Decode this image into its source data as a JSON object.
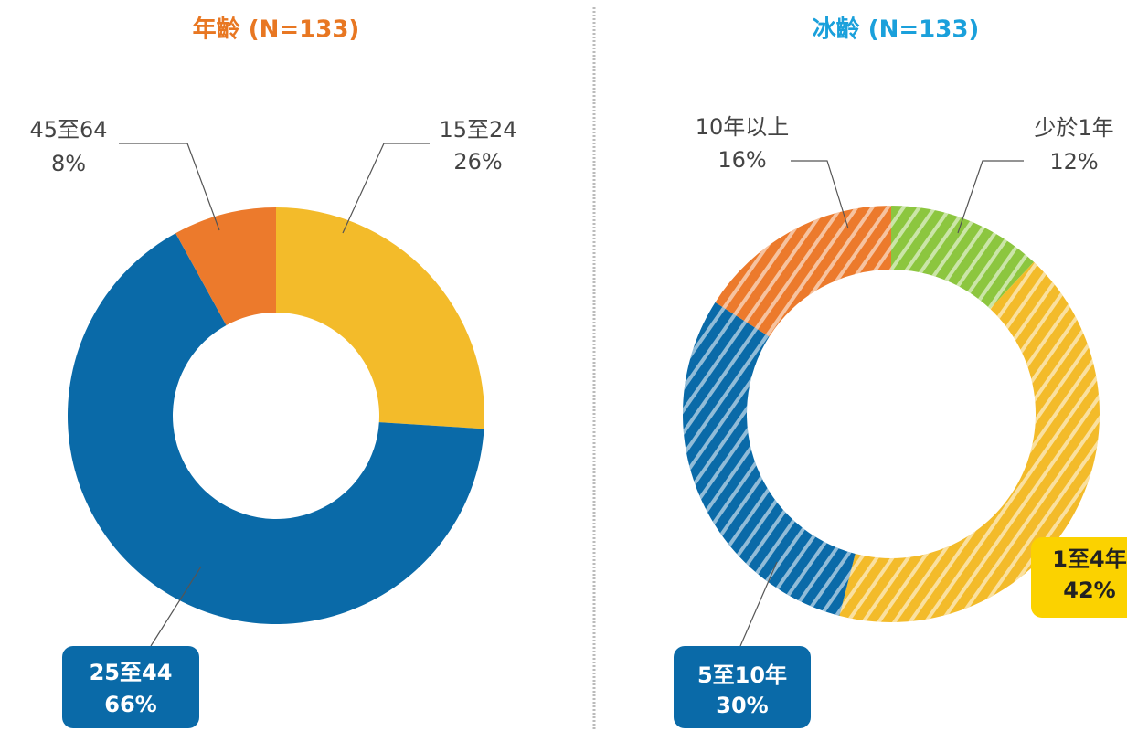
{
  "chart_data": [
    {
      "type": "pie",
      "title": "年齡 (N=133)",
      "title_color": "#e87722",
      "hatched": false,
      "categories": [
        "15至24",
        "25至44",
        "45至64"
      ],
      "values": [
        26,
        66,
        8
      ],
      "value_labels": [
        "26%",
        "66%",
        "8%"
      ],
      "colors": [
        "#f3bb2a",
        "#0a6aa8",
        "#ec7a2c"
      ]
    },
    {
      "type": "pie",
      "title": "冰齡 (N=133)",
      "title_color": "#1aa0db",
      "hatched": true,
      "categories": [
        "少於1年",
        "1至4年",
        "5至10年",
        "10年以上"
      ],
      "values": [
        12,
        42,
        30,
        16
      ],
      "value_labels": [
        "12%",
        "42%",
        "30%",
        "16%"
      ],
      "colors": [
        "#8cc63f",
        "#f3bb2a",
        "#0a6aa8",
        "#ec7a2c"
      ]
    }
  ]
}
